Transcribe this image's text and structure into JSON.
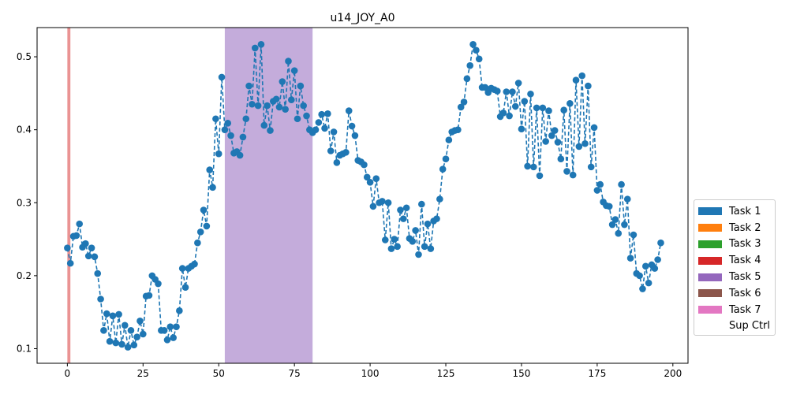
{
  "chart_data": {
    "type": "line",
    "title": "u14_JOY_A0",
    "xlabel": "",
    "ylabel": "",
    "xlim": [
      -10,
      205
    ],
    "ylim": [
      0.08,
      0.54
    ],
    "x_ticks": [
      0,
      25,
      50,
      75,
      100,
      125,
      150,
      175,
      200
    ],
    "y_ticks": [
      0.1,
      0.2,
      0.3,
      0.4,
      0.5
    ],
    "y_tick_labels": [
      "0.1",
      "0.2",
      "0.3",
      "0.4",
      "0.5"
    ],
    "grid": false,
    "line_style": "dashed with circle markers",
    "series_color": "#1f77b4",
    "shaded_regions": [
      {
        "task": "Task 4",
        "x_start": 0,
        "x_end": 1,
        "color": "#d62728",
        "alpha": 0.5
      },
      {
        "task": "Task 5",
        "x_start": 52,
        "x_end": 81,
        "color": "#9467bd",
        "alpha": 0.55
      }
    ],
    "series": [
      {
        "x": [
          0,
          1,
          2,
          3,
          4,
          5,
          6,
          7,
          8,
          9,
          10,
          11,
          12,
          13,
          14,
          15,
          16,
          17,
          18,
          19,
          20,
          21,
          22,
          23,
          24,
          25,
          26,
          27,
          28,
          29,
          30,
          31,
          32,
          33,
          34,
          35,
          36,
          37,
          38,
          39,
          40,
          41,
          42,
          43,
          44,
          45,
          46,
          47,
          48,
          49,
          50,
          51,
          52,
          53,
          54,
          55,
          56,
          57,
          58,
          59,
          60,
          61,
          62,
          63,
          64,
          65,
          66,
          67,
          68,
          69,
          70,
          71,
          72,
          73,
          74,
          75,
          76,
          77,
          78,
          79,
          80,
          81,
          82,
          83,
          84,
          85,
          86,
          87,
          88,
          89,
          90,
          91,
          92,
          93,
          94,
          95,
          96,
          97,
          98,
          99,
          100,
          101,
          102,
          103,
          104,
          105,
          106,
          107,
          108,
          109,
          110,
          111,
          112,
          113,
          114,
          115,
          116,
          117,
          118,
          119,
          120,
          121,
          122,
          123,
          124,
          125,
          126,
          127,
          128,
          129,
          130,
          131,
          132,
          133,
          134,
          135,
          136,
          137,
          138,
          139,
          140,
          141,
          142,
          143,
          144,
          145,
          146,
          147,
          148,
          149,
          150,
          151,
          152,
          153,
          154,
          155,
          156,
          157,
          158,
          159,
          160,
          161,
          162,
          163,
          164,
          165,
          166,
          167,
          168,
          169,
          170,
          171,
          172,
          173,
          174,
          175,
          176,
          177,
          178,
          179,
          180,
          181,
          182,
          183,
          184,
          185,
          186,
          187,
          188,
          189,
          190,
          191,
          192,
          193,
          194,
          195,
          196
        ],
        "values": [
          0.238,
          0.217,
          0.254,
          0.255,
          0.271,
          0.239,
          0.244,
          0.227,
          0.238,
          0.226,
          0.203,
          0.168,
          0.125,
          0.148,
          0.11,
          0.145,
          0.108,
          0.147,
          0.106,
          0.132,
          0.102,
          0.125,
          0.105,
          0.116,
          0.138,
          0.12,
          0.172,
          0.173,
          0.2,
          0.195,
          0.189,
          0.125,
          0.125,
          0.112,
          0.13,
          0.115,
          0.13,
          0.152,
          0.21,
          0.184,
          0.21,
          0.213,
          0.216,
          0.245,
          0.26,
          0.29,
          0.268,
          0.345,
          0.321,
          0.415,
          0.367,
          0.472,
          0.4,
          0.409,
          0.392,
          0.368,
          0.37,
          0.365,
          0.39,
          0.415,
          0.46,
          0.435,
          0.512,
          0.433,
          0.517,
          0.406,
          0.433,
          0.399,
          0.439,
          0.442,
          0.431,
          0.466,
          0.428,
          0.494,
          0.441,
          0.481,
          0.415,
          0.46,
          0.433,
          0.419,
          0.4,
          0.396,
          0.4,
          0.41,
          0.421,
          0.402,
          0.422,
          0.371,
          0.397,
          0.355,
          0.365,
          0.367,
          0.369,
          0.426,
          0.405,
          0.392,
          0.358,
          0.356,
          0.352,
          0.335,
          0.328,
          0.295,
          0.333,
          0.3,
          0.302,
          0.249,
          0.3,
          0.237,
          0.25,
          0.24,
          0.29,
          0.278,
          0.293,
          0.251,
          0.247,
          0.262,
          0.229,
          0.298,
          0.24,
          0.271,
          0.237,
          0.275,
          0.278,
          0.305,
          0.346,
          0.36,
          0.386,
          0.397,
          0.399,
          0.4,
          0.431,
          0.438,
          0.47,
          0.488,
          0.517,
          0.509,
          0.497,
          0.458,
          0.458,
          0.451,
          0.457,
          0.455,
          0.453,
          0.418,
          0.423,
          0.452,
          0.419,
          0.452,
          0.432,
          0.464,
          0.401,
          0.439,
          0.35,
          0.449,
          0.349,
          0.43,
          0.337,
          0.43,
          0.384,
          0.426,
          0.392,
          0.399,
          0.383,
          0.36,
          0.427,
          0.343,
          0.436,
          0.338,
          0.468,
          0.377,
          0.474,
          0.381,
          0.46,
          0.349,
          0.403,
          0.317,
          0.325,
          0.301,
          0.296,
          0.295,
          0.27,
          0.277,
          0.258,
          0.325,
          0.27,
          0.305,
          0.224,
          0.256,
          0.203,
          0.2,
          0.182,
          0.213,
          0.19,
          0.215,
          0.21,
          0.222,
          0.245
        ]
      }
    ],
    "legend": {
      "placement": "right",
      "entries": [
        {
          "label": "Task 1",
          "color": "#1f77b4"
        },
        {
          "label": "Task 2",
          "color": "#ff7f0e"
        },
        {
          "label": "Task 3",
          "color": "#2ca02c"
        },
        {
          "label": "Task 4",
          "color": "#d62728"
        },
        {
          "label": "Task 5",
          "color": "#9467bd"
        },
        {
          "label": "Task 6",
          "color": "#8c564b"
        },
        {
          "label": "Task 7",
          "color": "#e377c2"
        },
        {
          "label": "Sup Ctrl",
          "color": "#ffffff"
        }
      ]
    }
  }
}
